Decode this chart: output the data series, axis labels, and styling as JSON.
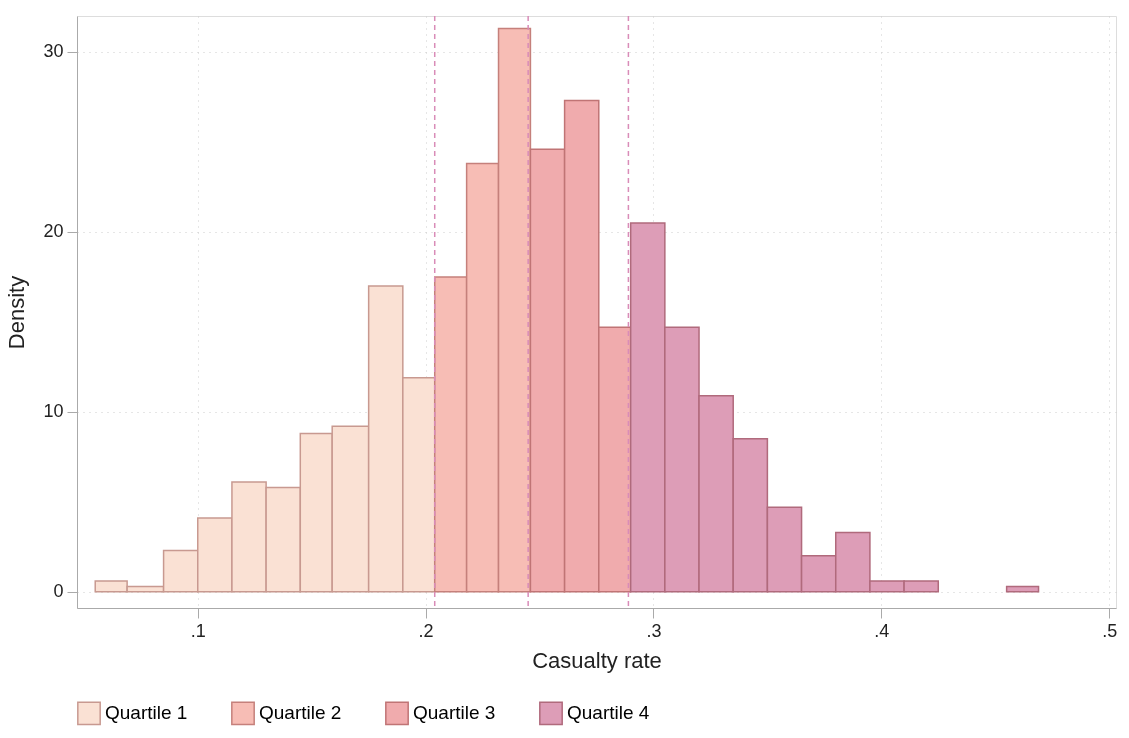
{
  "chart_data": {
    "type": "histogram",
    "xlabel": "Casualty rate",
    "ylabel": "Density",
    "xlim": [
      0.047,
      0.503
    ],
    "ylim": [
      -0.9,
      32
    ],
    "xticks": [
      {
        "value": 0.1,
        "label": ".1"
      },
      {
        "value": 0.2,
        "label": ".2"
      },
      {
        "value": 0.3,
        "label": ".3"
      },
      {
        "value": 0.4,
        "label": ".4"
      },
      {
        "value": 0.5,
        "label": ".5"
      }
    ],
    "yticks": [
      0,
      10,
      20,
      30
    ],
    "grid": true,
    "legend": "bottom",
    "bins": [
      0.055,
      0.069,
      0.085,
      0.1,
      0.115,
      0.13,
      0.145,
      0.159,
      0.175,
      0.19,
      0.204,
      0.218,
      0.232,
      0.246,
      0.261,
      0.276,
      0.29,
      0.305,
      0.32,
      0.335,
      0.35,
      0.365,
      0.38,
      0.395,
      0.41,
      0.425,
      0.455,
      0.469
    ],
    "series": [
      {
        "name": "Quartile 1",
        "color": "#fae1d4",
        "values": [
          0.6,
          0.3,
          2.3,
          4.1,
          6.1,
          5.8,
          8.8,
          9.2,
          17.0,
          11.9,
          null,
          null,
          null,
          null,
          null,
          null,
          null,
          null,
          null,
          null,
          null,
          null,
          null,
          null,
          null,
          null,
          null
        ]
      },
      {
        "name": "Quartile 2",
        "color": "#f7bdb5",
        "values": [
          null,
          null,
          null,
          null,
          null,
          null,
          null,
          null,
          null,
          null,
          17.5,
          23.8,
          31.3,
          null,
          null,
          null,
          null,
          null,
          null,
          null,
          null,
          null,
          null,
          null,
          null,
          null,
          null
        ]
      },
      {
        "name": "Quartile 3",
        "color": "#f0abad",
        "values": [
          null,
          null,
          null,
          null,
          null,
          null,
          null,
          null,
          null,
          null,
          null,
          null,
          null,
          24.6,
          27.3,
          14.7,
          null,
          null,
          null,
          null,
          null,
          null,
          null,
          null,
          null,
          null,
          null
        ]
      },
      {
        "name": "Quartile 4",
        "color": "#dd9db7",
        "values": [
          null,
          null,
          null,
          null,
          null,
          null,
          null,
          null,
          null,
          null,
          null,
          null,
          null,
          null,
          null,
          null,
          20.5,
          14.7,
          10.9,
          8.5,
          4.7,
          2.0,
          3.3,
          0.6,
          0.6,
          null,
          0.3
        ]
      }
    ],
    "ref_lines": [
      {
        "axis": "x",
        "value": 0.204,
        "color": "#d98cb8",
        "line_style": "dashed"
      },
      {
        "axis": "x",
        "value": 0.245,
        "color": "#d98cb8",
        "line_style": "dashed"
      },
      {
        "axis": "x",
        "value": 0.289,
        "color": "#d98cb8",
        "line_style": "dashed"
      }
    ]
  }
}
